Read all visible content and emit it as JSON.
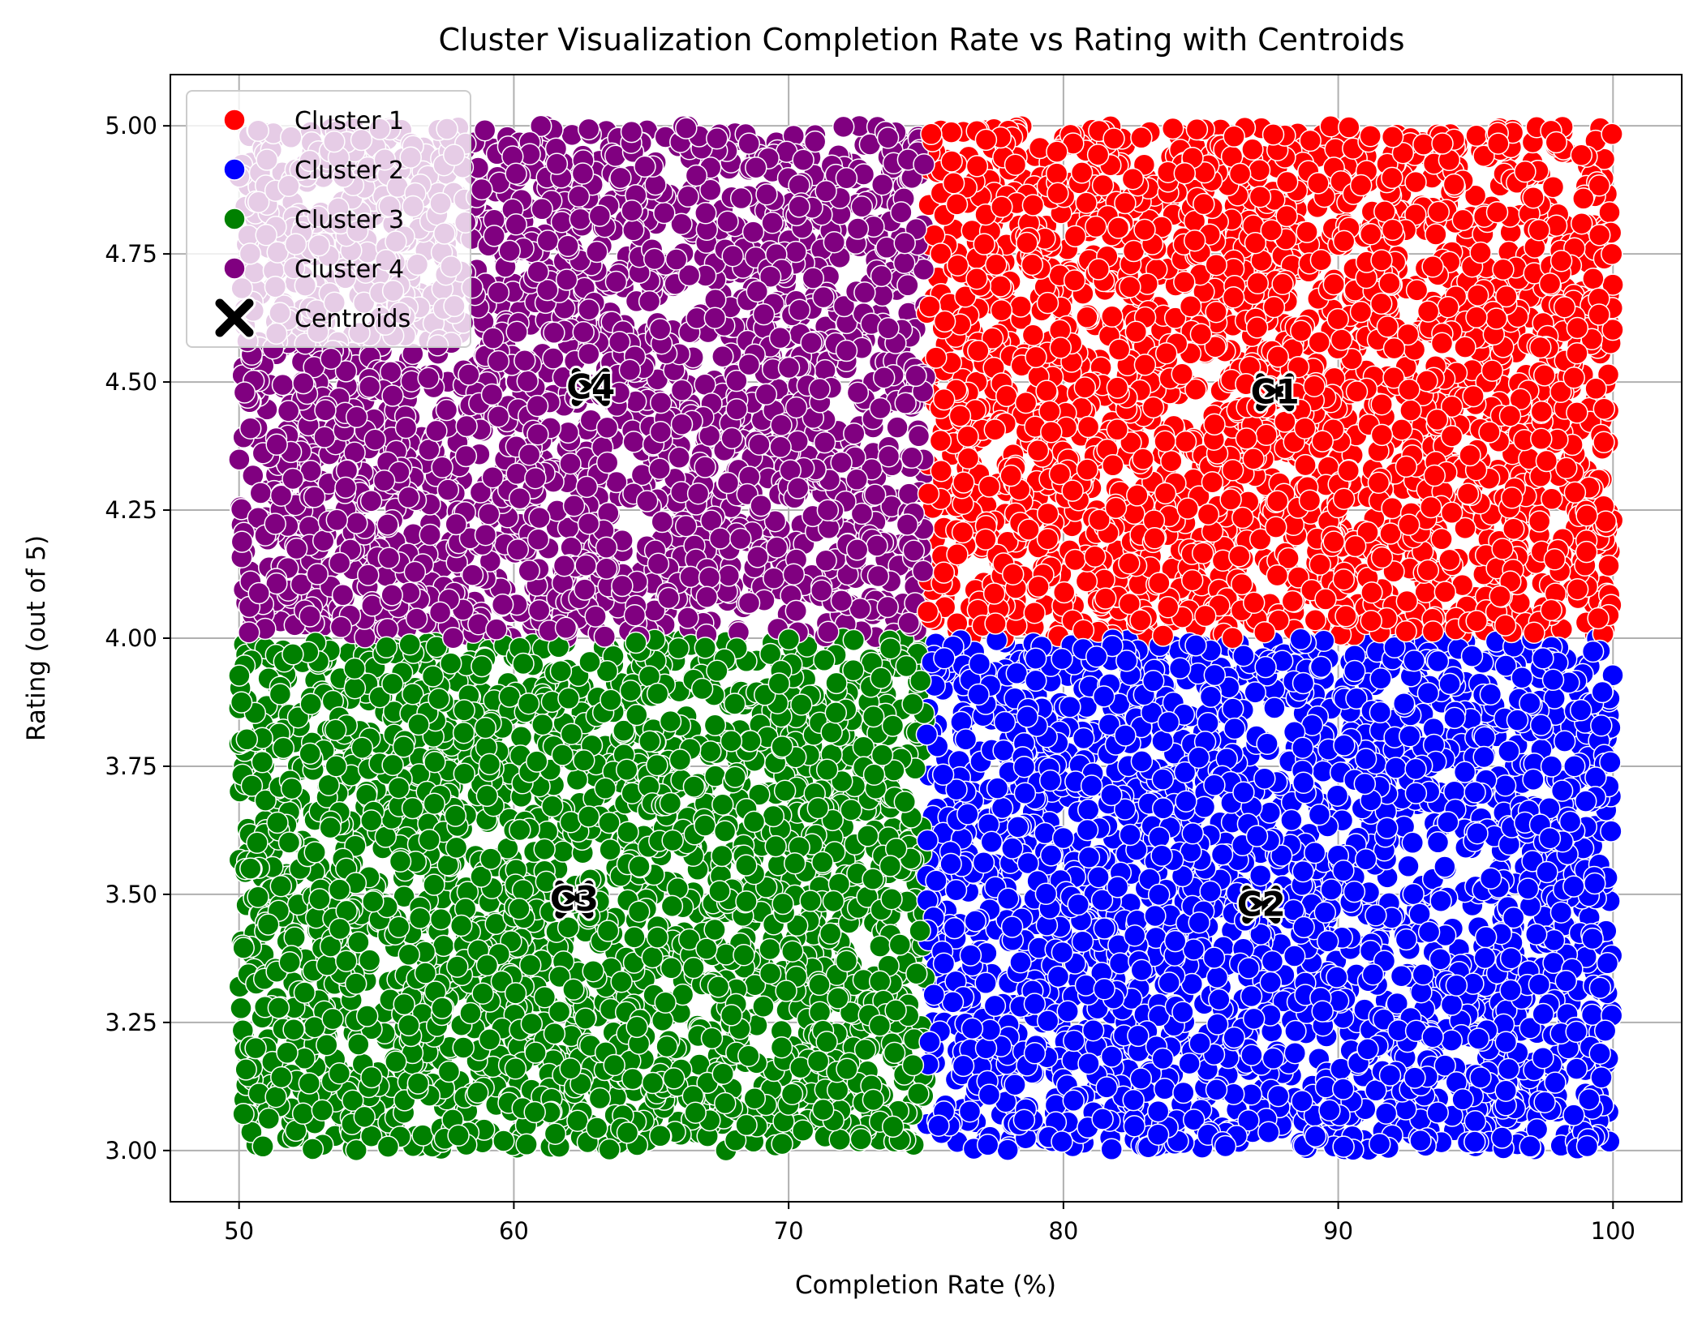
{
  "chart_data": {
    "type": "scatter",
    "title": "Cluster Visualization Completion Rate vs Rating with Centroids",
    "xlabel": "Completion Rate (%)",
    "ylabel": "Rating (out of 5)",
    "xlim": [
      47.5,
      102.5
    ],
    "ylim": [
      2.9,
      5.1
    ],
    "xticks": [
      50,
      60,
      70,
      80,
      90,
      100
    ],
    "yticks": [
      3.0,
      3.25,
      3.5,
      3.75,
      4.0,
      4.25,
      4.5,
      4.75,
      5.0
    ],
    "grid": true,
    "legend_position": "top-left",
    "marker_edge_color": "#ffffff",
    "series": [
      {
        "name": "Cluster 1",
        "color": "#ff0000",
        "x_range": [
          75,
          100
        ],
        "y_range": [
          4.0,
          5.0
        ],
        "approx_points": 2500
      },
      {
        "name": "Cluster 2",
        "color": "#0000ff",
        "x_range": [
          75,
          100
        ],
        "y_range": [
          3.0,
          4.0
        ],
        "approx_points": 2500
      },
      {
        "name": "Cluster 3",
        "color": "#008000",
        "x_range": [
          50,
          75
        ],
        "y_range": [
          3.0,
          4.0
        ],
        "approx_points": 2500
      },
      {
        "name": "Cluster 4",
        "color": "#800080",
        "x_range": [
          50,
          75
        ],
        "y_range": [
          4.0,
          5.0
        ],
        "approx_points": 2500
      }
    ],
    "centroids": {
      "name": "Centroids",
      "color": "#000000",
      "points": [
        {
          "label": "C1",
          "x": 87.7,
          "y": 4.48
        },
        {
          "label": "C2",
          "x": 87.2,
          "y": 3.48
        },
        {
          "label": "C3",
          "x": 62.2,
          "y": 3.49
        },
        {
          "label": "C4",
          "x": 62.8,
          "y": 4.49
        }
      ]
    }
  }
}
